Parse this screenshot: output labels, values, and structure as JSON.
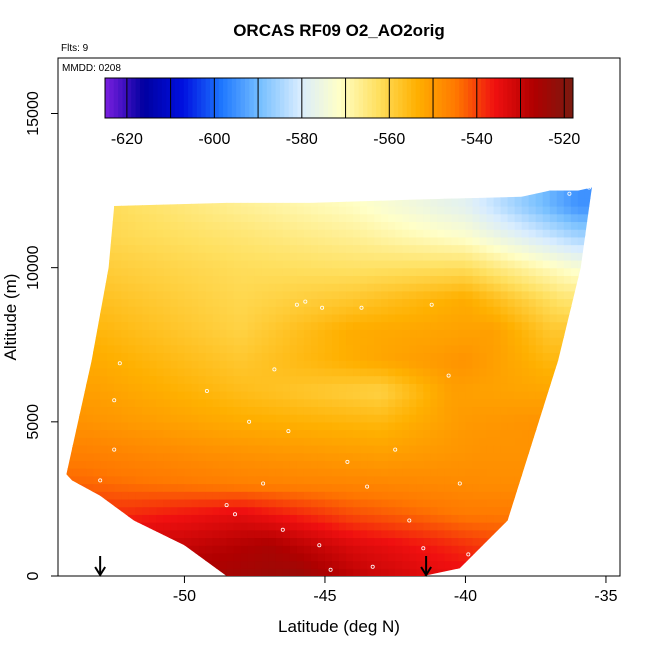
{
  "chart_data": {
    "type": "heatmap",
    "title": "ORCAS RF09 O2_AO2orig",
    "annotations": {
      "flights": "Flts: 9",
      "date": "MMDD: 0208"
    },
    "xlabel": "Latitude (deg N)",
    "ylabel": "Altitude (m)",
    "xlim": [
      -54.5,
      -34.5
    ],
    "ylim": [
      0,
      16800
    ],
    "xticks": [
      -50,
      -45,
      -40,
      -35
    ],
    "xtick_labels": [
      "-50",
      "-45",
      "-40",
      "-35"
    ],
    "yticks": [
      0,
      5000,
      10000,
      15000
    ],
    "ytick_labels": [
      "0",
      "5000",
      "10000",
      "15000"
    ],
    "colorbar": {
      "range": [
        -625,
        -518
      ],
      "ticks": [
        -620,
        -600,
        -580,
        -560,
        -540,
        -520
      ],
      "tick_labels": [
        "-620",
        "-600",
        "-580",
        "-560",
        "-540",
        "-520"
      ],
      "colors": [
        "#7b1fe0",
        "#0000a0",
        "#0010e0",
        "#1e78ff",
        "#78c0ff",
        "#d8ecff",
        "#ffffc8",
        "#ffe060",
        "#ffb000",
        "#ff7800",
        "#f01010",
        "#b00000",
        "#7a1a10"
      ],
      "legend_position": "top-inside"
    },
    "field": {
      "polygon_lat": [
        -54.0,
        -53.0,
        -51.8,
        -50.0,
        -48.5,
        -44.0,
        -41.5,
        -40.2,
        -38.5,
        -36.7,
        -35.9,
        -35.5,
        -36.0,
        -37.0,
        -38.0,
        -42.0,
        -45.5,
        -48.5,
        -52.5,
        -52.7,
        -53.3,
        -54.2
      ],
      "polygon_alt": [
        3100,
        2600,
        1800,
        1000,
        0,
        0,
        0,
        250,
        1800,
        7000,
        10000,
        12600,
        12500,
        12500,
        12300,
        12200,
        12100,
        12100,
        12000,
        10000,
        7000,
        3300
      ],
      "rows": [
        {
          "alt": 0,
          "lat": [
            -48.5,
            -46.0,
            -43.5,
            -41.0,
            -39.5
          ],
          "val": [
            -525,
            -523,
            -530,
            -534,
            -535
          ]
        },
        {
          "alt": 1000,
          "lat": [
            -50.0,
            -47.0,
            -44.0,
            -41.0,
            -39.0
          ],
          "val": [
            -530,
            -526,
            -533,
            -537,
            -540
          ]
        },
        {
          "alt": 2000,
          "lat": [
            -52.0,
            -48.0,
            -44.0,
            -40.0,
            -38.5
          ],
          "val": [
            -538,
            -534,
            -541,
            -545,
            -545
          ]
        },
        {
          "alt": 3000,
          "lat": [
            -54.0,
            -48.0,
            -43.0,
            -39.0,
            -38.0
          ],
          "val": [
            -543,
            -546,
            -547,
            -548,
            -548
          ]
        },
        {
          "alt": 4000,
          "lat": [
            -53.5,
            -48.0,
            -43.0,
            -39.5,
            -37.5
          ],
          "val": [
            -546,
            -549,
            -551,
            -549,
            -549
          ]
        },
        {
          "alt": 5000,
          "lat": [
            -53.5,
            -48.0,
            -43.0,
            -40.0,
            -37.5
          ],
          "val": [
            -549,
            -553,
            -555,
            -550,
            -549
          ]
        },
        {
          "alt": 6000,
          "lat": [
            -53.2,
            -48.0,
            -43.0,
            -40.5,
            -37.2
          ],
          "val": [
            -551,
            -556,
            -560,
            -551,
            -552
          ]
        },
        {
          "alt": 7000,
          "lat": [
            -53.0,
            -48.0,
            -43.0,
            -40.0,
            -37.0
          ],
          "val": [
            -553,
            -558,
            -552,
            -549,
            -555
          ]
        },
        {
          "alt": 8000,
          "lat": [
            -52.8,
            -48.0,
            -44.0,
            -39.0,
            -37.0
          ],
          "val": [
            -555,
            -560,
            -553,
            -551,
            -558
          ]
        },
        {
          "alt": 9000,
          "lat": [
            -52.7,
            -48.0,
            -44.0,
            -40.0,
            -36.5
          ],
          "val": [
            -557,
            -561,
            -558,
            -553,
            -564
          ]
        },
        {
          "alt": 10000,
          "lat": [
            -52.7,
            -48.0,
            -44.0,
            -40.0,
            -36.0
          ],
          "val": [
            -559,
            -562,
            -563,
            -562,
            -573
          ]
        },
        {
          "alt": 11000,
          "lat": [
            -52.6,
            -48.0,
            -44.0,
            -40.0,
            -36.0
          ],
          "val": [
            -561,
            -564,
            -567,
            -572,
            -585
          ]
        },
        {
          "alt": 12000,
          "lat": [
            -52.5,
            -48.0,
            -44.0,
            -40.0,
            -36.0
          ],
          "val": [
            -562,
            -567,
            -571,
            -578,
            -595
          ]
        }
      ],
      "sample_points": [
        {
          "lat": -53.0,
          "alt": 3100
        },
        {
          "lat": -52.5,
          "alt": 4100
        },
        {
          "lat": -52.5,
          "alt": 5700
        },
        {
          "lat": -52.3,
          "alt": 6900
        },
        {
          "lat": -49.2,
          "alt": 6000
        },
        {
          "lat": -48.5,
          "alt": 2300
        },
        {
          "lat": -48.2,
          "alt": 2000
        },
        {
          "lat": -47.7,
          "alt": 5000
        },
        {
          "lat": -47.2,
          "alt": 3000
        },
        {
          "lat": -46.8,
          "alt": 6700
        },
        {
          "lat": -46.5,
          "alt": 1500
        },
        {
          "lat": -46.3,
          "alt": 4700
        },
        {
          "lat": -45.7,
          "alt": 8900
        },
        {
          "lat": -45.2,
          "alt": 1000
        },
        {
          "lat": -44.8,
          "alt": 200
        },
        {
          "lat": -44.2,
          "alt": 3700
        },
        {
          "lat": -43.5,
          "alt": 2900
        },
        {
          "lat": -43.3,
          "alt": 300
        },
        {
          "lat": -42.5,
          "alt": 4100
        },
        {
          "lat": -42.0,
          "alt": 1800
        },
        {
          "lat": -41.5,
          "alt": 900
        },
        {
          "lat": -41.2,
          "alt": 8800
        },
        {
          "lat": -40.6,
          "alt": 6500
        },
        {
          "lat": -40.2,
          "alt": 3000
        },
        {
          "lat": -39.9,
          "alt": 700
        },
        {
          "lat": -38.7,
          "alt": 1400
        },
        {
          "lat": -37.8,
          "alt": 2800
        },
        {
          "lat": -36.3,
          "alt": 12400
        },
        {
          "lat": -35.6,
          "alt": 12600
        },
        {
          "lat": -46.0,
          "alt": 8800
        },
        {
          "lat": -43.7,
          "alt": 8700
        },
        {
          "lat": -45.1,
          "alt": 8700
        }
      ],
      "flight_arrows_lat": [
        -53.0,
        -41.4
      ]
    }
  }
}
